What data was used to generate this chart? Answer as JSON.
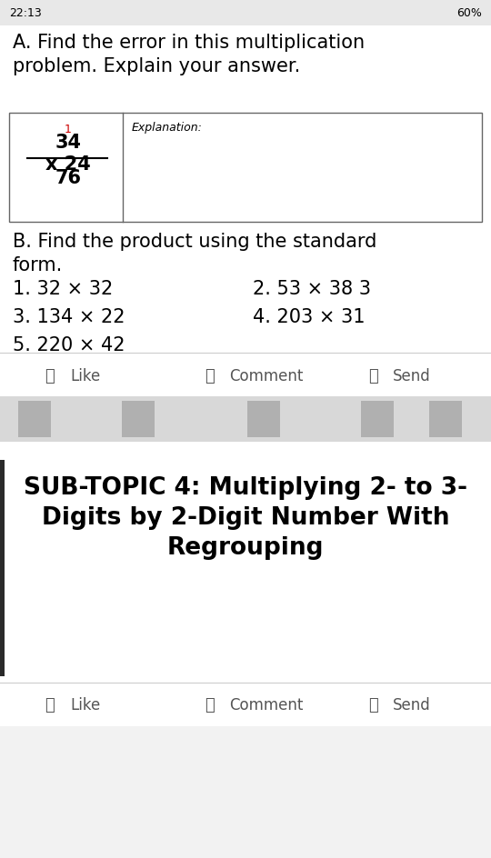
{
  "white": "#ffffff",
  "black": "#000000",
  "light_gray": "#e8e8e8",
  "med_gray": "#cccccc",
  "dark_gray": "#555555",
  "red": "#cc0000",
  "status_time": "22:13",
  "status_pct": "60%",
  "section_a": "A. Find the error in this multiplication\nproblem. Explain your answer.",
  "carry": "1",
  "num1": "34",
  "num2": "x 24",
  "num3": "76",
  "explanation": "Explanation:",
  "section_b": "B. Find the product using the standard\nform.",
  "p1": "1. 32 × 32",
  "p2": "2. 53 × 38 3",
  "p3": "3. 134 × 22",
  "p4": "4. 203 × 31",
  "p5": "5. 220 × 42",
  "like": "Like",
  "comment": "Comment",
  "send": "Send",
  "subtopic": "SUB-TOPIC 4: Multiplying 2- to 3-\nDigits by 2-Digit Number With\nRegrouping",
  "figsize": [
    5.4,
    9.44
  ],
  "dpi": 100
}
